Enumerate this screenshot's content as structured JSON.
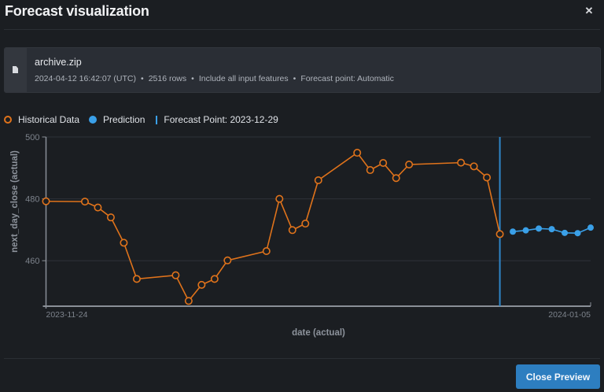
{
  "dialog": {
    "title": "Forecast visualization",
    "close_icon": "close-icon"
  },
  "dataset_card": {
    "icon": "file-icon",
    "name": "archive.zip",
    "meta": [
      "2024-04-12 16:42:07 (UTC)",
      "2516 rows",
      "Include all input features",
      "Forecast point: Automatic"
    ],
    "separator": "•"
  },
  "legend": {
    "historical": "Historical Data",
    "prediction": "Prediction",
    "forecast_point": "Forecast Point: 2023-12-29"
  },
  "footer": {
    "close_preview_label": "Close Preview"
  },
  "colors": {
    "historical": "#e0731b",
    "prediction": "#3aa0e8",
    "forecast_line": "#2f86c9",
    "button": "#2d7ec0",
    "grid": "#2e3238",
    "axis": "#8a8f97"
  },
  "chart_data": {
    "type": "line",
    "title": "",
    "xlabel": "date (actual)",
    "ylabel": "next_day_close (actual)",
    "x_tick_labels": [
      "2023-11-24",
      "2024-01-05"
    ],
    "y_ticks": [
      460,
      480,
      500
    ],
    "ylim": [
      445.5,
      500
    ],
    "xlim": [
      "2023-11-24",
      "2024-01-05"
    ],
    "grid": true,
    "legend_position": "top-left",
    "forecast_point": "2023-12-29",
    "series": [
      {
        "name": "Historical Data",
        "marker": "hollow-circle",
        "x": [
          "2023-11-24",
          "2023-11-27",
          "2023-11-28",
          "2023-11-29",
          "2023-11-30",
          "2023-12-01",
          "2023-12-04",
          "2023-12-05",
          "2023-12-06",
          "2023-12-07",
          "2023-12-08",
          "2023-12-11",
          "2023-12-12",
          "2023-12-13",
          "2023-12-14",
          "2023-12-15",
          "2023-12-18",
          "2023-12-19",
          "2023-12-20",
          "2023-12-21",
          "2023-12-22",
          "2023-12-26",
          "2023-12-27",
          "2023-12-28",
          "2023-12-29"
        ],
        "values": [
          479.2,
          479.1,
          477.2,
          474.0,
          465.8,
          454.1,
          455.3,
          447.0,
          452.2,
          454.1,
          460.1,
          463.1,
          480.0,
          469.9,
          472.0,
          486.0,
          494.9,
          489.3,
          491.6,
          486.7,
          491.1,
          491.7,
          490.5,
          486.9,
          468.6
        ]
      },
      {
        "name": "Prediction",
        "marker": "filled-circle",
        "x": [
          "2023-12-30",
          "2023-12-31",
          "2024-01-01",
          "2024-01-02",
          "2024-01-03",
          "2024-01-04",
          "2024-01-05"
        ],
        "values": [
          469.4,
          469.8,
          470.4,
          470.2,
          469.0,
          468.9,
          470.7
        ]
      }
    ]
  }
}
